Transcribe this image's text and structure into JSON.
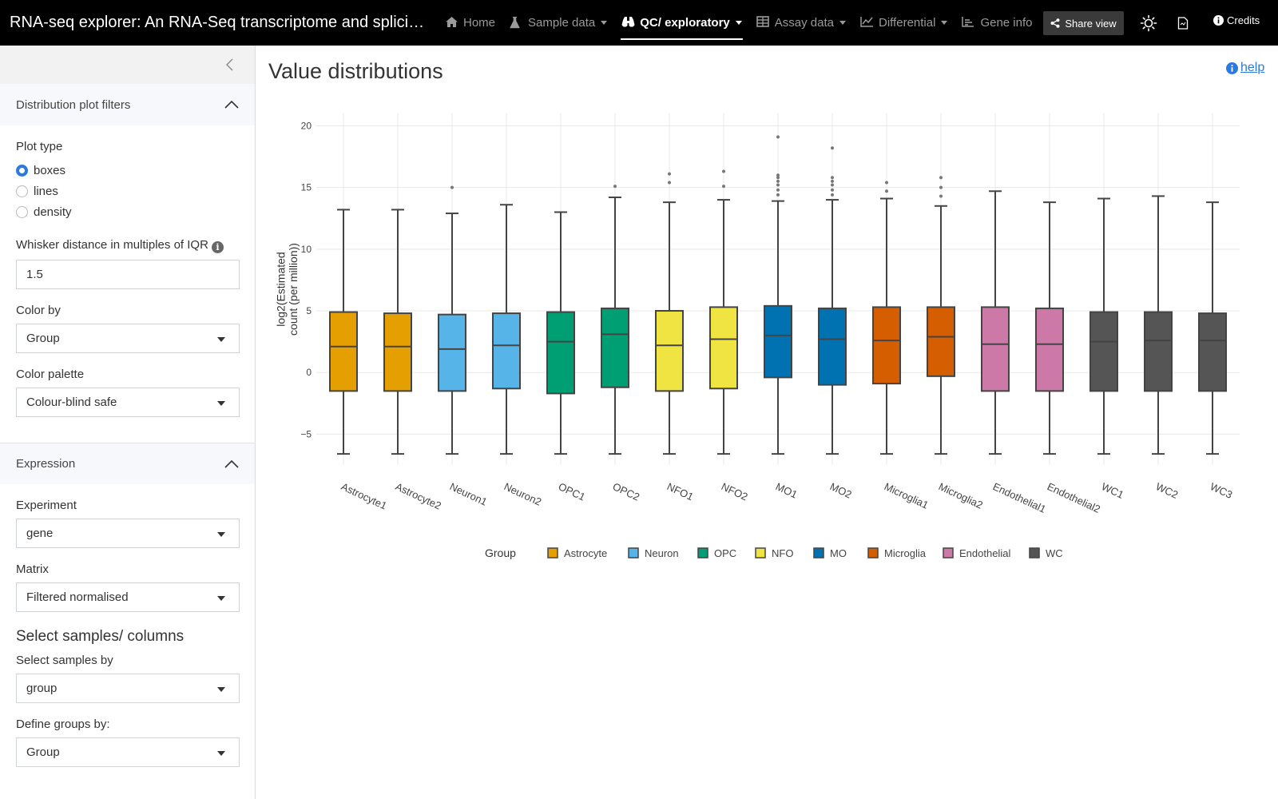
{
  "app": {
    "title": "RNA-seq explorer: An RNA-Seq transcriptome and splicing d...",
    "nav": [
      {
        "label": "Home",
        "icon": "home-icon",
        "active": false,
        "dropdown": false
      },
      {
        "label": "Sample data",
        "icon": "flask-icon",
        "active": false,
        "dropdown": true
      },
      {
        "label": "QC/ exploratory",
        "icon": "binoculars-icon",
        "active": true,
        "dropdown": true
      },
      {
        "label": "Assay data",
        "icon": "table-icon",
        "active": false,
        "dropdown": true
      },
      {
        "label": "Differential",
        "icon": "line-chart-icon",
        "active": false,
        "dropdown": true
      },
      {
        "label": "Gene info",
        "icon": "bar-chart-icon",
        "active": false,
        "dropdown": false
      }
    ],
    "share_label": "Share view",
    "credits_label": "Credits"
  },
  "sidebar": {
    "filters_header": "Distribution plot filters",
    "plot_type_label": "Plot type",
    "plot_types": [
      "boxes",
      "lines",
      "density"
    ],
    "plot_type_selected": "boxes",
    "whisker_label": "Whisker distance in multiples of IQR",
    "whisker_value": "1.5",
    "color_by_label": "Color by",
    "color_by_value": "Group",
    "palette_label": "Color palette",
    "palette_value": "Colour-blind safe",
    "expression_header": "Expression",
    "experiment_label": "Experiment",
    "experiment_value": "gene",
    "matrix_label": "Matrix",
    "matrix_value": "Filtered normalised",
    "select_title": "Select samples/ columns",
    "select_by_label": "Select samples by",
    "select_by_value": "group",
    "define_groups_label": "Define groups by:",
    "define_groups_value": "Group"
  },
  "main": {
    "title": "Value distributions",
    "help_label": "help"
  },
  "chart_data": {
    "type": "box",
    "ylabel": "log2(Estimated count (per million))",
    "ylim": [
      -7.5,
      21
    ],
    "yticks": [
      -5,
      0,
      5,
      10,
      15,
      20
    ],
    "ytick_labels": [
      "−5",
      "0",
      "5",
      "10",
      "15",
      "20"
    ],
    "legend_title": "Group",
    "legend_position": "bottom",
    "groups": [
      {
        "name": "Astrocyte",
        "color": "#E69F00"
      },
      {
        "name": "Neuron",
        "color": "#56B4E9"
      },
      {
        "name": "OPC",
        "color": "#009E73"
      },
      {
        "name": "NFO",
        "color": "#F0E442"
      },
      {
        "name": "MO",
        "color": "#0072B2"
      },
      {
        "name": "Microglia",
        "color": "#D55E00"
      },
      {
        "name": "Endothelial",
        "color": "#CC79A7"
      },
      {
        "name": "WC",
        "color": "#555555"
      }
    ],
    "samples": [
      {
        "name": "Astrocyte1",
        "group": 0,
        "min": -6.6,
        "q1": -1.5,
        "median": 2.1,
        "q3": 4.9,
        "max": 13.2,
        "outliers": []
      },
      {
        "name": "Astrocyte2",
        "group": 0,
        "min": -6.6,
        "q1": -1.5,
        "median": 2.1,
        "q3": 4.8,
        "max": 13.2,
        "outliers": []
      },
      {
        "name": "Neuron1",
        "group": 1,
        "min": -6.6,
        "q1": -1.5,
        "median": 1.9,
        "q3": 4.7,
        "max": 12.9,
        "outliers": [
          15.0
        ]
      },
      {
        "name": "Neuron2",
        "group": 1,
        "min": -6.6,
        "q1": -1.3,
        "median": 2.2,
        "q3": 4.8,
        "max": 13.6,
        "outliers": []
      },
      {
        "name": "OPC1",
        "group": 2,
        "min": -6.6,
        "q1": -1.7,
        "median": 2.5,
        "q3": 4.9,
        "max": 13.0,
        "outliers": []
      },
      {
        "name": "OPC2",
        "group": 2,
        "min": -6.6,
        "q1": -1.2,
        "median": 3.1,
        "q3": 5.2,
        "max": 14.2,
        "outliers": [
          15.1
        ]
      },
      {
        "name": "NFO1",
        "group": 3,
        "min": -6.6,
        "q1": -1.5,
        "median": 2.2,
        "q3": 5.0,
        "max": 13.8,
        "outliers": [
          15.4,
          16.1
        ]
      },
      {
        "name": "NFO2",
        "group": 3,
        "min": -6.6,
        "q1": -1.3,
        "median": 2.7,
        "q3": 5.3,
        "max": 14.0,
        "outliers": [
          15.1,
          16.3
        ]
      },
      {
        "name": "MO1",
        "group": 4,
        "min": -6.6,
        "q1": -0.4,
        "median": 3.0,
        "q3": 5.4,
        "max": 13.9,
        "outliers": [
          14.4,
          14.8,
          15.2,
          15.5,
          15.8,
          16.0,
          19.1
        ]
      },
      {
        "name": "MO2",
        "group": 4,
        "min": -6.6,
        "q1": -1.0,
        "median": 2.7,
        "q3": 5.2,
        "max": 14.0,
        "outliers": [
          14.4,
          14.8,
          15.2,
          15.5,
          15.8,
          18.2
        ]
      },
      {
        "name": "Microglia1",
        "group": 5,
        "min": -6.6,
        "q1": -0.9,
        "median": 2.6,
        "q3": 5.3,
        "max": 14.1,
        "outliers": [
          14.7,
          15.4
        ]
      },
      {
        "name": "Microglia2",
        "group": 5,
        "min": -6.6,
        "q1": -0.3,
        "median": 2.9,
        "q3": 5.3,
        "max": 13.5,
        "outliers": [
          14.3,
          15.0,
          15.8
        ]
      },
      {
        "name": "Endothelial1",
        "group": 6,
        "min": -6.6,
        "q1": -1.5,
        "median": 2.3,
        "q3": 5.3,
        "max": 14.7,
        "outliers": []
      },
      {
        "name": "Endothelial2",
        "group": 6,
        "min": -6.6,
        "q1": -1.5,
        "median": 2.3,
        "q3": 5.2,
        "max": 13.8,
        "outliers": []
      },
      {
        "name": "WC1",
        "group": 7,
        "min": -6.6,
        "q1": -1.5,
        "median": 2.5,
        "q3": 4.9,
        "max": 14.1,
        "outliers": []
      },
      {
        "name": "WC2",
        "group": 7,
        "min": -6.6,
        "q1": -1.5,
        "median": 2.6,
        "q3": 4.9,
        "max": 14.3,
        "outliers": []
      },
      {
        "name": "WC3",
        "group": 7,
        "min": -6.6,
        "q1": -1.5,
        "median": 2.6,
        "q3": 4.8,
        "max": 13.8,
        "outliers": []
      }
    ]
  }
}
